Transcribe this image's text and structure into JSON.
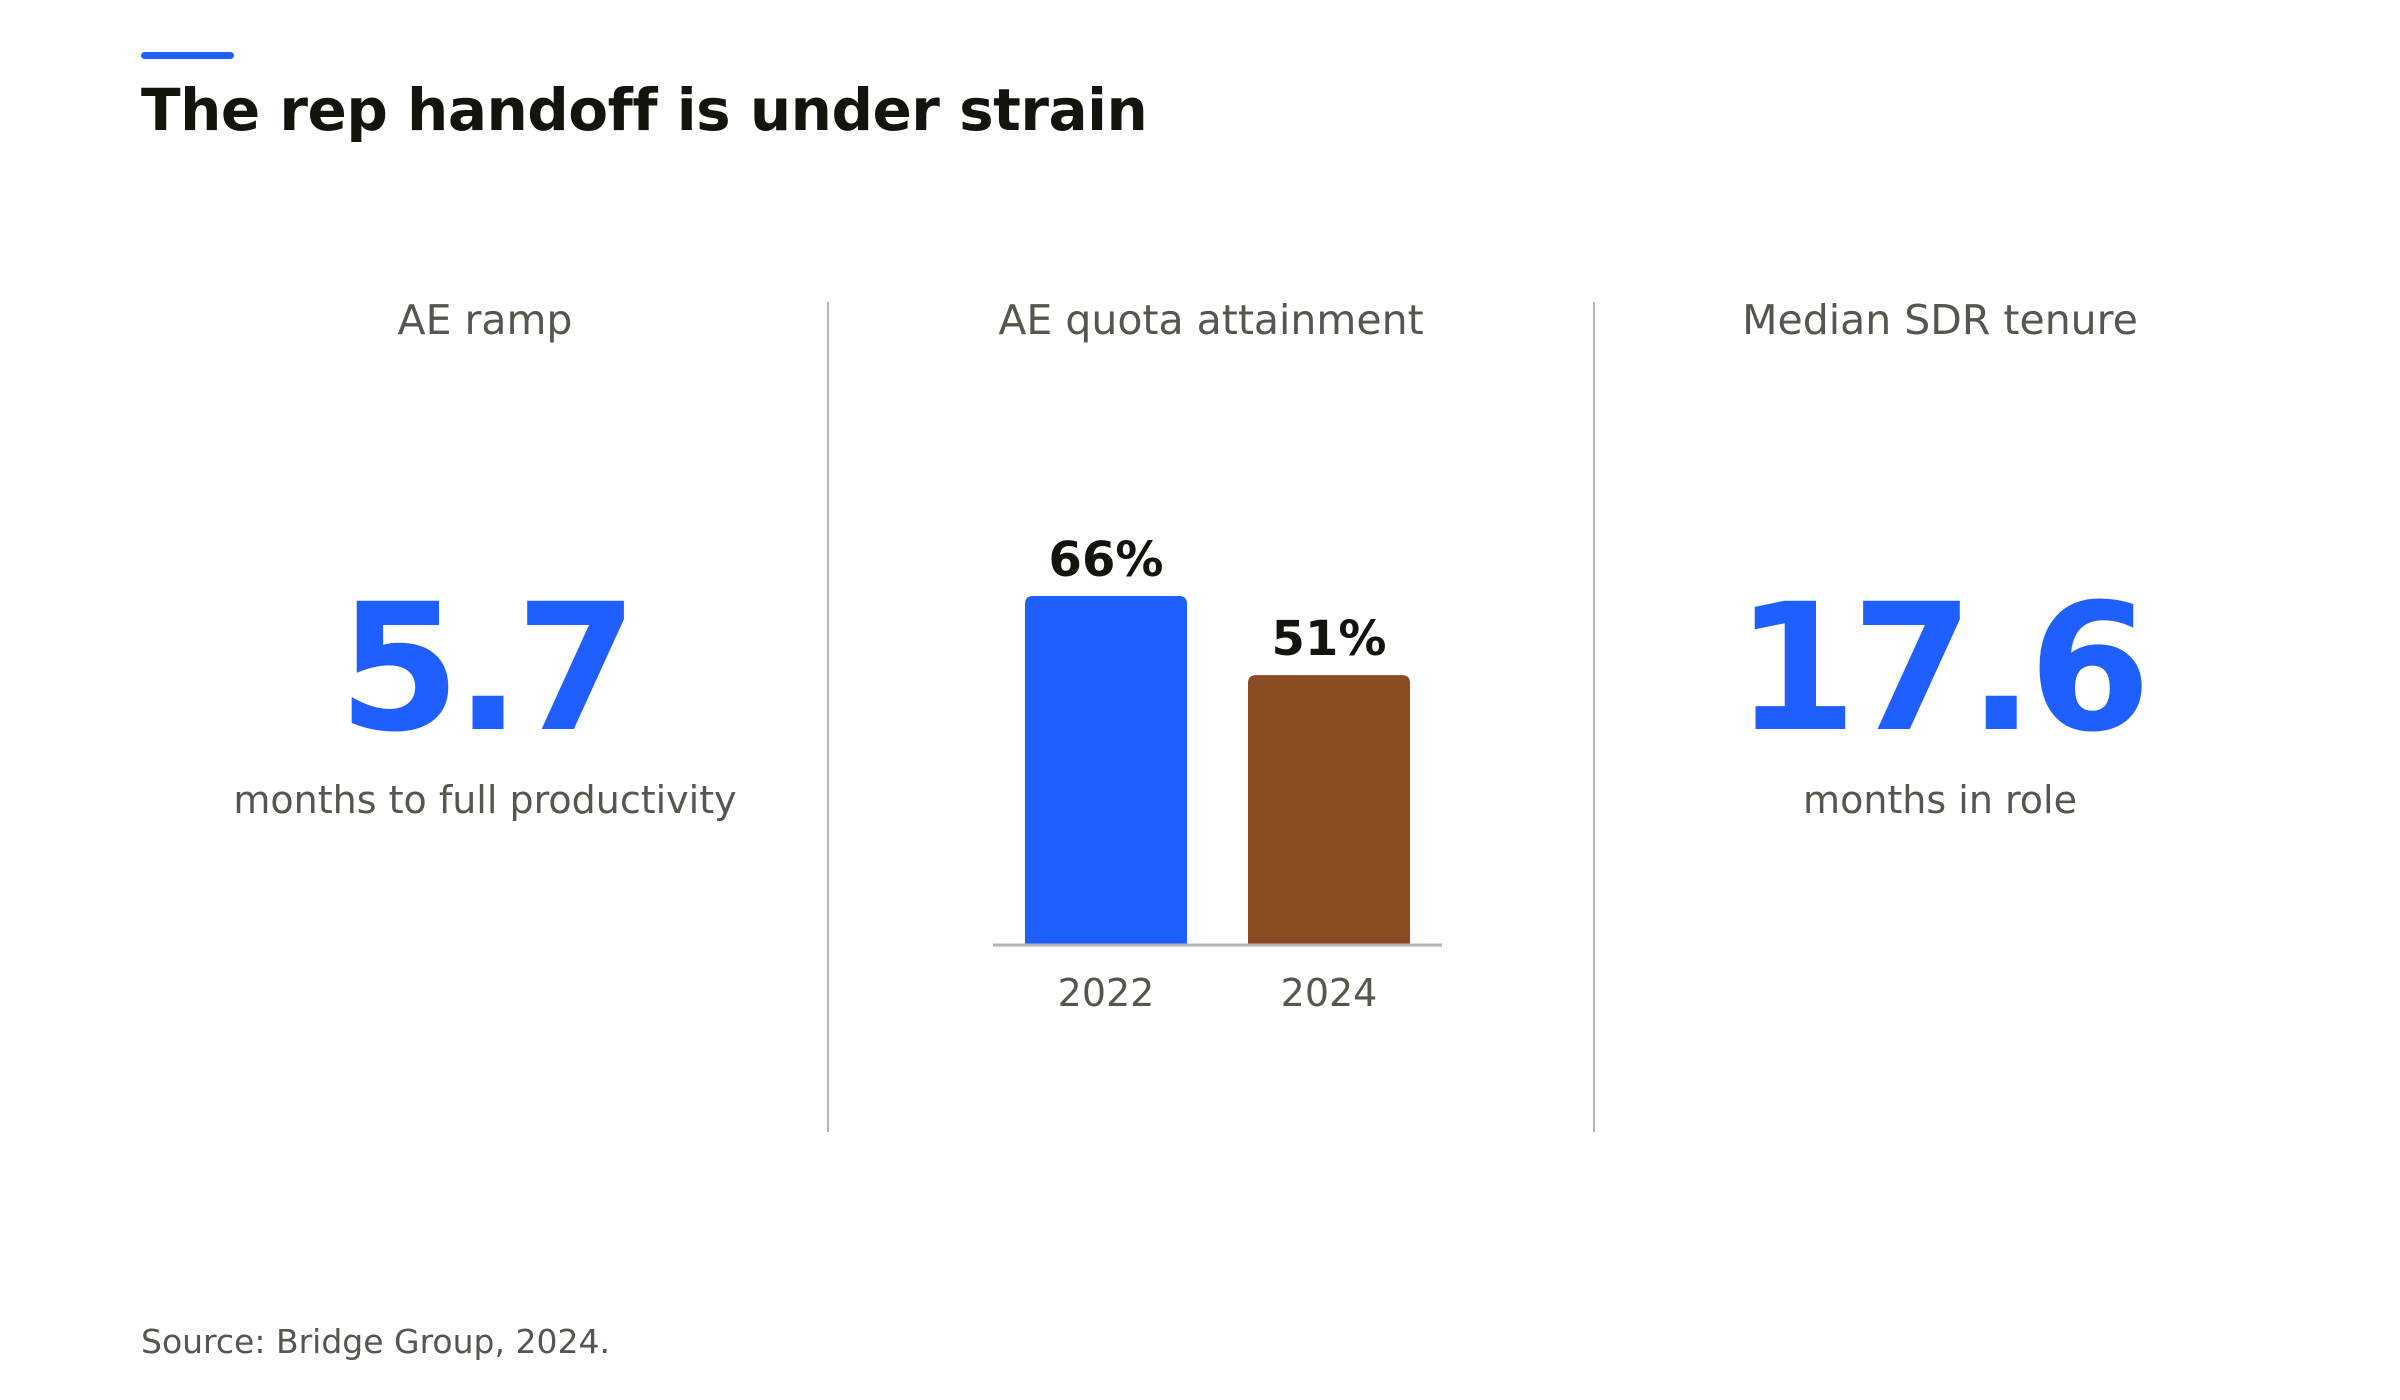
{
  "title": "The rep handoff is under strain",
  "colors": {
    "accent": "#1f5eff",
    "bar_2022": "#1f5eff",
    "bar_2024": "#8b4c24",
    "text_dark": "#14140f",
    "text_muted": "#56564f",
    "divider": "#b4b4b0"
  },
  "panels": {
    "ramp": {
      "heading": "AE ramp",
      "value": "5.7",
      "caption": "months to full productivity"
    },
    "quota": {
      "heading": "AE quota attainment"
    },
    "tenure": {
      "heading": "Median SDR tenure",
      "value": "17.6",
      "caption": "months in role"
    }
  },
  "chart_data": {
    "type": "bar",
    "title": "AE quota attainment",
    "categories": [
      "2022",
      "2024"
    ],
    "values": [
      66,
      51
    ],
    "value_labels": [
      "66%",
      "51%"
    ],
    "colors": [
      "#1f5eff",
      "#8b4c24"
    ],
    "unit": "%",
    "ylim": [
      0,
      66
    ],
    "grid": false,
    "legend": "none"
  },
  "source": "Source: Bridge Group, 2024."
}
